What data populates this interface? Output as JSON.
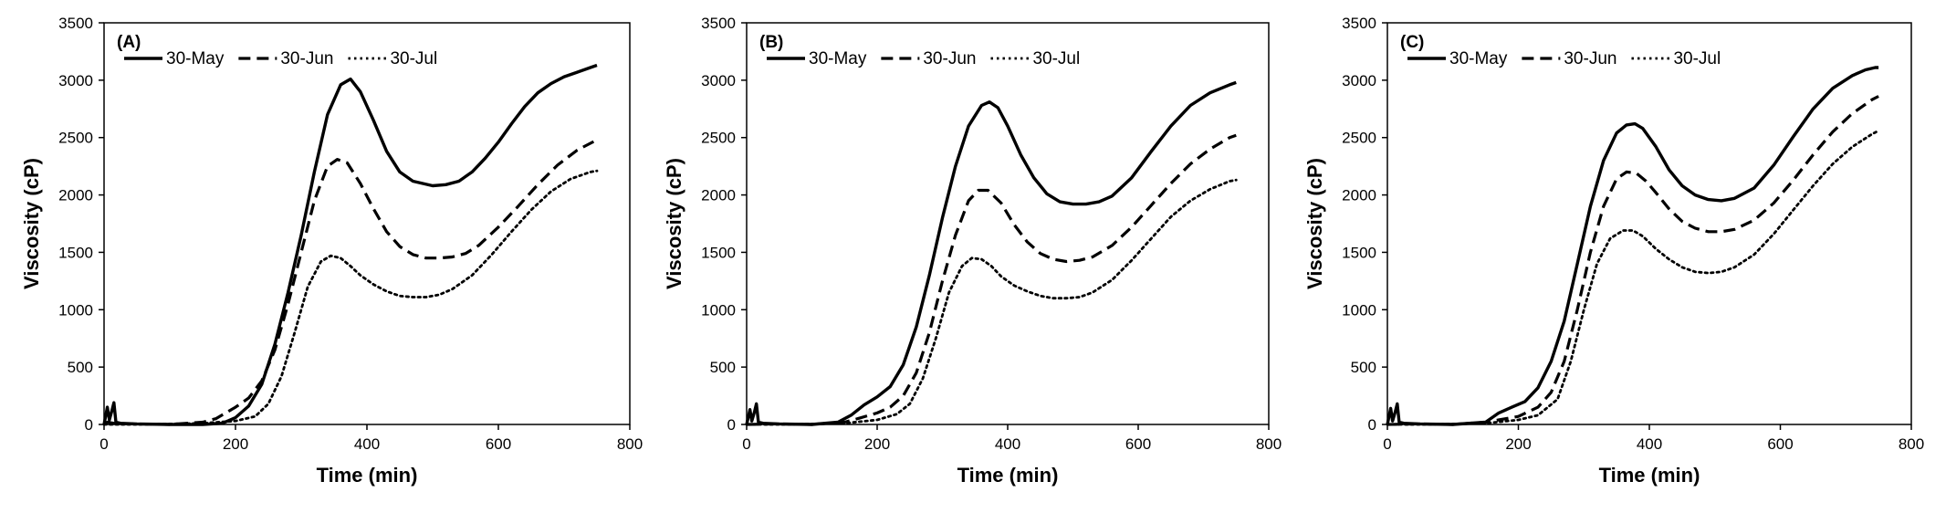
{
  "chart_data": [
    {
      "type": "line",
      "panel_label": "(A)",
      "xlabel": "Time (min)",
      "ylabel": "Viscosity (cP)",
      "xlim": [
        0,
        800
      ],
      "ylim": [
        0,
        3500
      ],
      "xticks": [
        0,
        200,
        400,
        600,
        800
      ],
      "yticks": [
        0,
        500,
        1000,
        1500,
        2000,
        2500,
        3000,
        3500
      ],
      "grid": false,
      "legend_position": "top-left",
      "series": [
        {
          "name": "30-May",
          "style": "solid",
          "x": [
            0,
            5,
            8,
            12,
            15,
            18,
            25,
            50,
            100,
            150,
            180,
            200,
            220,
            240,
            260,
            280,
            300,
            320,
            340,
            360,
            375,
            390,
            410,
            430,
            450,
            470,
            500,
            520,
            540,
            560,
            580,
            600,
            620,
            640,
            660,
            680,
            700,
            720,
            740,
            750
          ],
          "y": [
            0,
            150,
            40,
            120,
            190,
            20,
            10,
            5,
            0,
            0,
            10,
            60,
            160,
            350,
            700,
            1150,
            1650,
            2200,
            2700,
            2960,
            3010,
            2900,
            2650,
            2380,
            2200,
            2120,
            2080,
            2090,
            2120,
            2200,
            2320,
            2460,
            2620,
            2770,
            2890,
            2970,
            3030,
            3070,
            3110,
            3130
          ]
        },
        {
          "name": "30-Jun",
          "style": "dashed",
          "x": [
            0,
            5,
            10,
            15,
            20,
            50,
            100,
            150,
            170,
            200,
            220,
            240,
            260,
            280,
            300,
            320,
            340,
            355,
            370,
            390,
            410,
            430,
            450,
            470,
            490,
            510,
            530,
            550,
            570,
            600,
            630,
            660,
            690,
            720,
            750
          ],
          "y": [
            0,
            20,
            15,
            10,
            5,
            5,
            0,
            20,
            50,
            150,
            230,
            380,
            650,
            1050,
            1500,
            1950,
            2250,
            2310,
            2280,
            2100,
            1880,
            1680,
            1550,
            1480,
            1450,
            1450,
            1460,
            1490,
            1560,
            1720,
            1900,
            2090,
            2260,
            2390,
            2480
          ]
        },
        {
          "name": "30-Jul",
          "style": "dotted",
          "x": [
            0,
            50,
            100,
            150,
            200,
            230,
            250,
            270,
            290,
            310,
            330,
            345,
            360,
            375,
            390,
            410,
            430,
            450,
            470,
            490,
            510,
            530,
            560,
            590,
            620,
            650,
            680,
            710,
            740,
            750
          ],
          "y": [
            0,
            0,
            5,
            10,
            30,
            70,
            180,
            420,
            800,
            1200,
            1420,
            1470,
            1450,
            1380,
            1300,
            1220,
            1160,
            1120,
            1110,
            1110,
            1130,
            1180,
            1300,
            1480,
            1680,
            1870,
            2030,
            2140,
            2200,
            2210
          ]
        }
      ]
    },
    {
      "type": "line",
      "panel_label": "(B)",
      "xlabel": "Time (min)",
      "ylabel": "Viscosity (cP)",
      "xlim": [
        0,
        800
      ],
      "ylim": [
        0,
        3500
      ],
      "xticks": [
        0,
        200,
        400,
        600,
        800
      ],
      "yticks": [
        0,
        500,
        1000,
        1500,
        2000,
        2500,
        3000,
        3500
      ],
      "grid": false,
      "legend_position": "top-left",
      "series": [
        {
          "name": "30-May",
          "style": "solid",
          "x": [
            0,
            5,
            8,
            12,
            15,
            18,
            25,
            50,
            100,
            140,
            160,
            180,
            200,
            220,
            240,
            260,
            280,
            300,
            320,
            340,
            360,
            372,
            385,
            400,
            420,
            440,
            460,
            480,
            500,
            520,
            540,
            560,
            590,
            620,
            650,
            680,
            710,
            740,
            750
          ],
          "y": [
            0,
            130,
            30,
            110,
            180,
            20,
            10,
            5,
            0,
            20,
            80,
            170,
            240,
            330,
            520,
            850,
            1300,
            1800,
            2250,
            2600,
            2780,
            2810,
            2760,
            2600,
            2350,
            2150,
            2010,
            1940,
            1920,
            1920,
            1940,
            1990,
            2150,
            2380,
            2600,
            2780,
            2890,
            2960,
            2980
          ]
        },
        {
          "name": "30-Jun",
          "style": "dashed",
          "x": [
            0,
            50,
            100,
            150,
            170,
            200,
            220,
            240,
            260,
            280,
            300,
            320,
            340,
            355,
            370,
            390,
            410,
            430,
            450,
            470,
            490,
            510,
            530,
            560,
            590,
            620,
            650,
            680,
            710,
            740,
            750
          ],
          "y": [
            0,
            5,
            0,
            20,
            50,
            100,
            150,
            250,
            450,
            800,
            1250,
            1650,
            1950,
            2040,
            2040,
            1930,
            1740,
            1590,
            1490,
            1440,
            1420,
            1430,
            1460,
            1560,
            1720,
            1910,
            2100,
            2270,
            2400,
            2500,
            2520
          ]
        },
        {
          "name": "30-Jul",
          "style": "dotted",
          "x": [
            0,
            50,
            100,
            150,
            200,
            230,
            250,
            270,
            290,
            310,
            330,
            345,
            360,
            375,
            390,
            410,
            430,
            450,
            470,
            490,
            510,
            530,
            560,
            590,
            620,
            650,
            680,
            710,
            740,
            750
          ],
          "y": [
            0,
            0,
            5,
            10,
            40,
            90,
            180,
            400,
            750,
            1150,
            1380,
            1450,
            1440,
            1380,
            1290,
            1210,
            1160,
            1120,
            1100,
            1100,
            1110,
            1150,
            1260,
            1430,
            1620,
            1810,
            1950,
            2050,
            2120,
            2130
          ]
        }
      ]
    },
    {
      "type": "line",
      "panel_label": "(C)",
      "xlabel": "Time (min)",
      "ylabel": "Viscosity (cP)",
      "xlim": [
        0,
        800
      ],
      "ylim": [
        0,
        3500
      ],
      "xticks": [
        0,
        200,
        400,
        600,
        800
      ],
      "yticks": [
        0,
        500,
        1000,
        1500,
        2000,
        2500,
        3000,
        3500
      ],
      "grid": false,
      "legend_position": "top-left",
      "series": [
        {
          "name": "30-May",
          "style": "solid",
          "x": [
            0,
            5,
            8,
            12,
            15,
            18,
            25,
            50,
            100,
            150,
            170,
            190,
            210,
            230,
            250,
            270,
            290,
            310,
            330,
            350,
            365,
            378,
            390,
            410,
            430,
            450,
            470,
            490,
            510,
            530,
            560,
            590,
            620,
            650,
            680,
            710,
            730,
            745,
            750
          ],
          "y": [
            0,
            140,
            30,
            110,
            180,
            20,
            10,
            5,
            0,
            20,
            100,
            150,
            200,
            320,
            550,
            900,
            1400,
            1900,
            2300,
            2540,
            2610,
            2620,
            2580,
            2420,
            2220,
            2080,
            2000,
            1960,
            1950,
            1970,
            2060,
            2260,
            2510,
            2750,
            2930,
            3040,
            3090,
            3110,
            3110
          ]
        },
        {
          "name": "30-Jun",
          "style": "dashed",
          "x": [
            0,
            50,
            100,
            150,
            170,
            200,
            230,
            250,
            270,
            290,
            310,
            330,
            350,
            365,
            380,
            395,
            410,
            430,
            450,
            470,
            490,
            510,
            530,
            560,
            590,
            620,
            650,
            680,
            710,
            740,
            750
          ],
          "y": [
            0,
            5,
            0,
            20,
            40,
            70,
            150,
            280,
            550,
            1000,
            1500,
            1900,
            2140,
            2200,
            2190,
            2120,
            2020,
            1880,
            1770,
            1710,
            1680,
            1680,
            1700,
            1780,
            1930,
            2130,
            2350,
            2550,
            2710,
            2830,
            2860
          ]
        },
        {
          "name": "30-Jul",
          "style": "dotted",
          "x": [
            0,
            50,
            100,
            150,
            200,
            230,
            260,
            280,
            300,
            320,
            340,
            360,
            375,
            390,
            410,
            430,
            450,
            470,
            490,
            510,
            530,
            560,
            590,
            620,
            650,
            680,
            710,
            740,
            750
          ],
          "y": [
            0,
            0,
            5,
            10,
            40,
            80,
            220,
            550,
            1000,
            1400,
            1620,
            1690,
            1690,
            1640,
            1530,
            1440,
            1370,
            1330,
            1320,
            1330,
            1370,
            1480,
            1660,
            1870,
            2080,
            2270,
            2420,
            2530,
            2560
          ]
        }
      ]
    }
  ]
}
